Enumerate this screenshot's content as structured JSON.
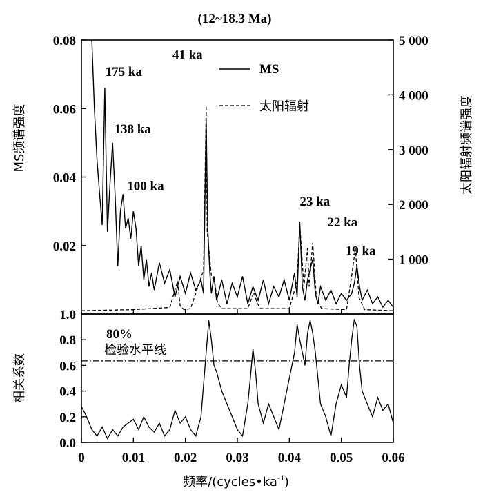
{
  "chart_data": [
    {
      "type": "line",
      "panel": "top",
      "title": "(12~18.3 Ma)",
      "ylabel": "MS频谱强度",
      "ylabel_right": "太阳辐射频谱强度",
      "xlim": [
        0,
        0.06
      ],
      "ylim": [
        0,
        0.08
      ],
      "ylim_right": [
        0,
        5000
      ],
      "yticks": [
        "0.02",
        "0.04",
        "0.06",
        "0.08"
      ],
      "yticks_right": [
        "1 000",
        "2 000",
        "3 000",
        "4 000",
        "5 000"
      ],
      "legend": {
        "placement": "top-right",
        "ms": "MS",
        "solar": "太阳辐射"
      },
      "peak_labels": [
        {
          "text": "175 ka",
          "x": 0.0046,
          "y": 0.0695
        },
        {
          "text": "138 ka",
          "x": 0.0063,
          "y": 0.0528
        },
        {
          "text": "100 ka",
          "x": 0.0088,
          "y": 0.0362
        },
        {
          "text": "41 ka",
          "x": 0.0175,
          "y": 0.0745
        },
        {
          "text": "23 ka",
          "x": 0.042,
          "y": 0.0316
        },
        {
          "text": "22 ka",
          "x": 0.0473,
          "y": 0.0256
        },
        {
          "text": "19 ka",
          "x": 0.0508,
          "y": 0.0172
        }
      ],
      "series": [
        {
          "name": "MS",
          "x": [
            0.002,
            0.0025,
            0.003,
            0.0035,
            0.004,
            0.0045,
            0.005,
            0.0055,
            0.006,
            0.0065,
            0.007,
            0.0075,
            0.008,
            0.0085,
            0.009,
            0.0095,
            0.01,
            0.0105,
            0.011,
            0.0115,
            0.012,
            0.0125,
            0.013,
            0.0135,
            0.014,
            0.015,
            0.016,
            0.017,
            0.018,
            0.019,
            0.02,
            0.021,
            0.022,
            0.023,
            0.0235,
            0.024,
            0.0243,
            0.0247,
            0.025,
            0.0255,
            0.026,
            0.027,
            0.028,
            0.029,
            0.03,
            0.031,
            0.032,
            0.033,
            0.034,
            0.035,
            0.036,
            0.037,
            0.038,
            0.039,
            0.04,
            0.0405,
            0.041,
            0.0415,
            0.042,
            0.0425,
            0.043,
            0.0435,
            0.044,
            0.0445,
            0.045,
            0.0455,
            0.046,
            0.047,
            0.048,
            0.049,
            0.05,
            0.051,
            0.052,
            0.0525,
            0.053,
            0.0535,
            0.054,
            0.055,
            0.056,
            0.057,
            0.058,
            0.059,
            0.06
          ],
          "values": [
            0.08,
            0.06,
            0.045,
            0.035,
            0.026,
            0.066,
            0.024,
            0.038,
            0.05,
            0.034,
            0.014,
            0.03,
            0.035,
            0.025,
            0.028,
            0.022,
            0.03,
            0.025,
            0.014,
            0.02,
            0.01,
            0.016,
            0.008,
            0.012,
            0.007,
            0.015,
            0.009,
            0.013,
            0.005,
            0.011,
            0.006,
            0.012,
            0.007,
            0.01,
            0.006,
            0.057,
            0.025,
            0.012,
            0.006,
            0.011,
            0.004,
            0.01,
            0.003,
            0.009,
            0.005,
            0.011,
            0.003,
            0.008,
            0.004,
            0.01,
            0.003,
            0.008,
            0.005,
            0.01,
            0.004,
            0.008,
            0.012,
            0.005,
            0.027,
            0.008,
            0.004,
            0.01,
            0.013,
            0.016,
            0.006,
            0.003,
            0.008,
            0.004,
            0.007,
            0.003,
            0.006,
            0.004,
            0.006,
            0.009,
            0.014,
            0.008,
            0.004,
            0.007,
            0.003,
            0.005,
            0.002,
            0.004,
            0.002
          ]
        },
        {
          "name": "太阳辐射",
          "x": [
            0.0,
            0.01,
            0.017,
            0.0185,
            0.019,
            0.0197,
            0.021,
            0.0235,
            0.024,
            0.0242,
            0.0245,
            0.025,
            0.0256,
            0.0262,
            0.027,
            0.032,
            0.0332,
            0.0338,
            0.0345,
            0.04,
            0.0415,
            0.042,
            0.0428,
            0.0435,
            0.0438,
            0.0445,
            0.0452,
            0.0462,
            0.051,
            0.052,
            0.0527,
            0.0534,
            0.0545,
            0.06
          ],
          "values": [
            60,
            80,
            120,
            600,
            150,
            80,
            100,
            800,
            3800,
            1500,
            1200,
            700,
            600,
            200,
            100,
            100,
            400,
            200,
            100,
            100,
            600,
            1650,
            500,
            1200,
            500,
            1300,
            300,
            100,
            80,
            700,
            1200,
            300,
            80,
            60
          ]
        }
      ]
    },
    {
      "type": "line",
      "panel": "bottom",
      "xlabel": "频率/(cycles•ka",
      "xlabel_sup": "-1",
      "xlabel_end": ")",
      "ylabel": "相关系数",
      "xlim": [
        0,
        0.06
      ],
      "ylim": [
        0,
        1.0
      ],
      "xticks": [
        "0",
        "0.01",
        "0.02",
        "0.03",
        "0.04",
        "0.05",
        "0.06"
      ],
      "yticks": [
        "0.0",
        "0.2",
        "0.4",
        "0.6",
        "0.8",
        "1.0"
      ],
      "threshold": {
        "value": 0.635,
        "label_line1": "80%",
        "label_line2": "检验水平线"
      },
      "series": [
        {
          "x": [
            0.0,
            0.001,
            0.002,
            0.003,
            0.004,
            0.005,
            0.006,
            0.007,
            0.008,
            0.009,
            0.01,
            0.011,
            0.012,
            0.013,
            0.014,
            0.015,
            0.016,
            0.017,
            0.018,
            0.019,
            0.02,
            0.021,
            0.022,
            0.023,
            0.0235,
            0.024,
            0.0245,
            0.025,
            0.0255,
            0.026,
            0.027,
            0.028,
            0.029,
            0.03,
            0.031,
            0.032,
            0.0325,
            0.033,
            0.0335,
            0.034,
            0.035,
            0.036,
            0.037,
            0.038,
            0.039,
            0.04,
            0.041,
            0.0415,
            0.042,
            0.0425,
            0.043,
            0.0435,
            0.044,
            0.0445,
            0.045,
            0.0455,
            0.046,
            0.047,
            0.048,
            0.049,
            0.05,
            0.051,
            0.0515,
            0.052,
            0.0525,
            0.053,
            0.0535,
            0.054,
            0.055,
            0.056,
            0.057,
            0.058,
            0.059,
            0.06
          ],
          "values": [
            0.28,
            0.2,
            0.1,
            0.05,
            0.12,
            0.03,
            0.1,
            0.05,
            0.12,
            0.15,
            0.18,
            0.1,
            0.2,
            0.12,
            0.08,
            0.15,
            0.05,
            0.1,
            0.25,
            0.15,
            0.2,
            0.1,
            0.05,
            0.2,
            0.45,
            0.7,
            0.95,
            0.8,
            0.6,
            0.55,
            0.4,
            0.3,
            0.2,
            0.1,
            0.05,
            0.3,
            0.5,
            0.73,
            0.55,
            0.3,
            0.15,
            0.3,
            0.2,
            0.1,
            0.3,
            0.5,
            0.7,
            0.92,
            0.8,
            0.7,
            0.6,
            0.85,
            0.95,
            0.85,
            0.7,
            0.5,
            0.3,
            0.2,
            0.05,
            0.3,
            0.45,
            0.35,
            0.6,
            0.8,
            0.96,
            0.9,
            0.6,
            0.4,
            0.3,
            0.2,
            0.35,
            0.25,
            0.3,
            0.15
          ]
        }
      ]
    }
  ]
}
